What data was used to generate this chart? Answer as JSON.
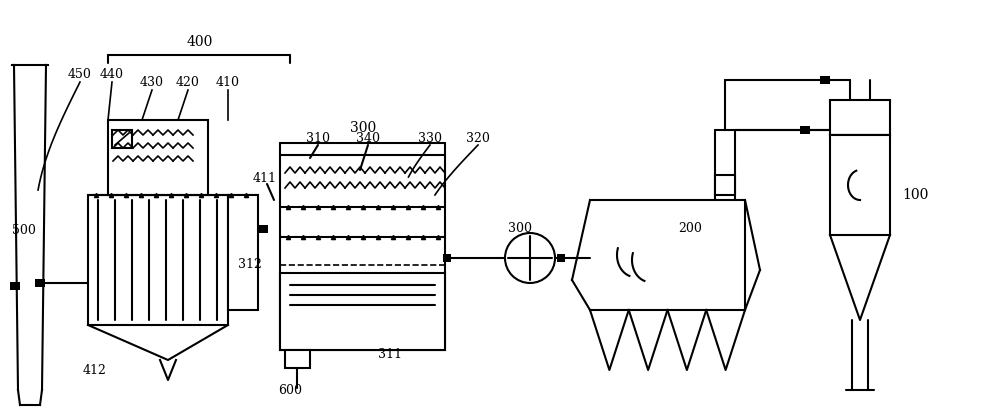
{
  "bg_color": "#ffffff",
  "line_color": "#000000",
  "lw": 1.5,
  "figsize": [
    10.0,
    4.07
  ],
  "dpi": 100
}
